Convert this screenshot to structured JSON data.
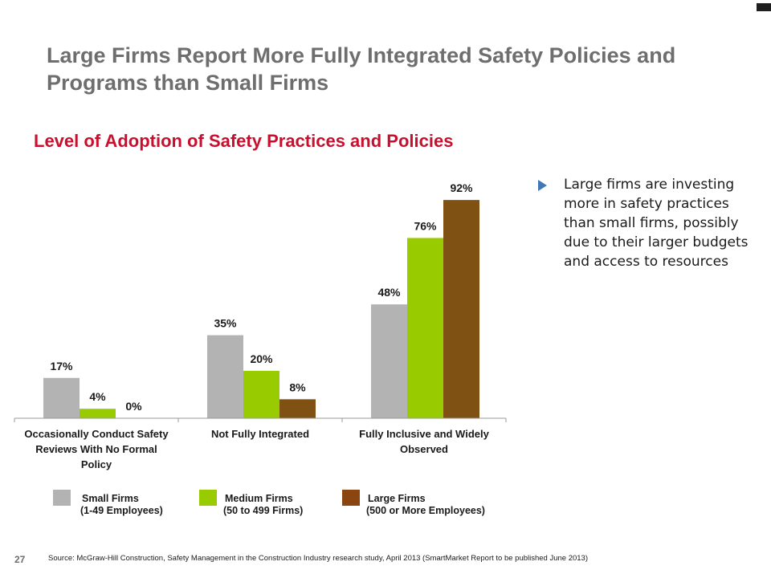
{
  "slide": {
    "title": "Large Firms Report More Fully Integrated Safety Policies and Programs than Small Firms",
    "page_number": "27",
    "source": "Source: McGraw-Hill Construction, Safety Management in the Construction Industry research study, April 2013 (SmartMarket Report to be published June 2013)"
  },
  "bullet": {
    "text": "Large firms are investing more in safety practices than small firms, possibly due to their larger budgets and access to resources"
  },
  "legend": {
    "small": {
      "name": "Small Firms",
      "sub": "(1-49 Employees)"
    },
    "medium": {
      "name": "Medium Firms",
      "sub": "(50 to 499 Firms)"
    },
    "large": {
      "name": "Large Firms",
      "sub": "(500 or More Employees)"
    }
  },
  "chart_data": {
    "type": "bar",
    "title": "Level of Adoption of Safety Practices and Policies",
    "categories": [
      "Occasionally Conduct Safety Reviews With No Formal Policy",
      "Not Fully Integrated",
      "Fully Inclusive and Widely Observed"
    ],
    "series": [
      {
        "name": "Small Firms (1-49 Employees)",
        "values": [
          17,
          35,
          48
        ],
        "labels": [
          "17%",
          "35%",
          "48%"
        ],
        "color": "#b3b3b3"
      },
      {
        "name": "Medium Firms (50 to 499 Firms)",
        "values": [
          4,
          20,
          76
        ],
        "labels": [
          "4%",
          "20%",
          "76%"
        ],
        "color": "#99cc00"
      },
      {
        "name": "Large Firms (500 or More Employees)",
        "values": [
          0,
          8,
          92
        ],
        "labels": [
          "0%",
          "8%",
          "92%"
        ],
        "color": "#7f5213"
      }
    ],
    "ylim": [
      0,
      100
    ],
    "grid": false,
    "legend_position": "bottom",
    "swatch_colors": {
      "small": "#b3b3b3",
      "medium": "#99cc00",
      "large": "#8b4510"
    }
  }
}
